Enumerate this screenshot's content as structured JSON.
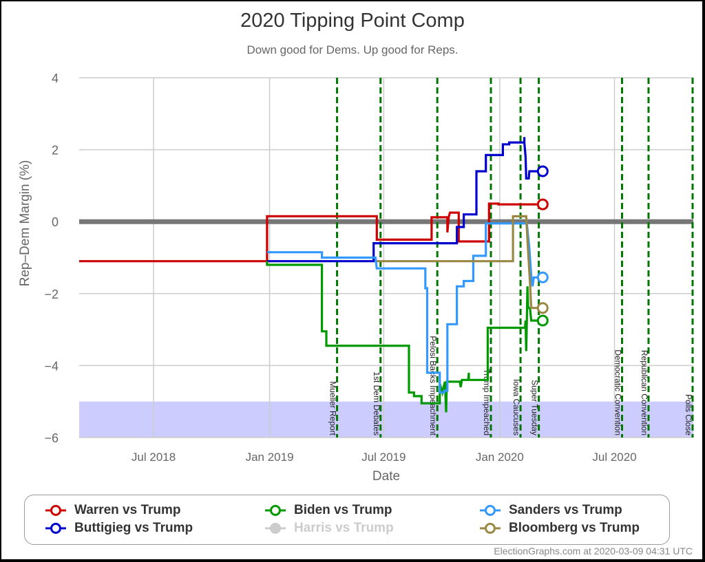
{
  "header": {
    "title": "2020 Tipping Point Comp",
    "subtitle": "Down good for Dems. Up good for Reps."
  },
  "credit": "ElectionGraphs.com at 2020-03-09 04:31 UTC",
  "colors": {
    "warren": "#cc0000",
    "buttigieg": "#0000cc",
    "biden": "#009900",
    "sanders": "#3399ff",
    "bloomberg": "#998844",
    "harris": "#cccccc",
    "event_line": "#007700",
    "zero_line": "#777777",
    "grid": "#cccccc",
    "band": "#ccccff"
  },
  "legend": [
    {
      "label": "Warren vs Trump",
      "key": "warren",
      "enabled": true
    },
    {
      "label": "Biden vs Trump",
      "key": "biden",
      "enabled": true
    },
    {
      "label": "Sanders vs Trump",
      "key": "sanders",
      "enabled": true
    },
    {
      "label": "Buttigieg vs Trump",
      "key": "buttigieg",
      "enabled": true
    },
    {
      "label": "Harris vs Trump",
      "key": "harris",
      "enabled": false
    },
    {
      "label": "Bloomberg vs Trump",
      "key": "bloomberg",
      "enabled": true
    }
  ],
  "chart_data": {
    "type": "line",
    "title": "2020 Tipping Point Comp",
    "subtitle": "Down good for Dems. Up good for Reps.",
    "xlabel": "Date",
    "ylabel": "Rep-Dem Margin (%)",
    "ylim": [
      -6,
      4
    ],
    "yticks": [
      4,
      2,
      0,
      -2,
      -4,
      -6
    ],
    "ytick_labels": [
      "4",
      "2",
      "0",
      "−2",
      "−4",
      "−6"
    ],
    "xlim": [
      "2018-03-05",
      "2020-11-03"
    ],
    "xticks": [
      {
        "date": "2018-07-01",
        "label": "Jul 2018"
      },
      {
        "date": "2019-01-01",
        "label": "Jan 2019"
      },
      {
        "date": "2019-07-01",
        "label": "Jul 2019"
      },
      {
        "date": "2020-01-01",
        "label": "Jan 2020"
      },
      {
        "date": "2020-07-01",
        "label": "Jul 2020"
      }
    ],
    "grid": true,
    "shaded_band": {
      "from": -6,
      "to": -5
    },
    "events": [
      {
        "date": "2019-04-18",
        "label": "Mueller Report"
      },
      {
        "date": "2019-06-26",
        "label": "1st Dem Debates"
      },
      {
        "date": "2019-09-24",
        "label": "Pelosi Backs Impeachment"
      },
      {
        "date": "2019-12-18",
        "label": "Trump Impeached"
      },
      {
        "date": "2020-02-03",
        "label": "Iowa Caucuses"
      },
      {
        "date": "2020-03-03",
        "label": "Super Tuesday"
      },
      {
        "date": "2020-07-13",
        "label": "Democratic Convention"
      },
      {
        "date": "2020-08-24",
        "label": "Republican Convention"
      },
      {
        "date": "2020-11-03",
        "label": "Polls Close"
      }
    ],
    "series": [
      {
        "name": "Warren vs Trump",
        "key": "warren",
        "points": [
          [
            "2018-03-05",
            -1.1
          ],
          [
            "2018-12-28",
            -1.1
          ],
          [
            "2018-12-28",
            0.15
          ],
          [
            "2019-06-20",
            0.15
          ],
          [
            "2019-06-20",
            -0.5
          ],
          [
            "2019-09-15",
            -0.5
          ],
          [
            "2019-09-15",
            0.12
          ],
          [
            "2019-10-10",
            0.12
          ],
          [
            "2019-10-10",
            -0.3
          ],
          [
            "2019-10-12",
            0.12
          ],
          [
            "2019-10-14",
            0.25
          ],
          [
            "2019-10-28",
            0.25
          ],
          [
            "2019-10-28",
            -0.55
          ],
          [
            "2019-12-15",
            -0.55
          ],
          [
            "2019-12-15",
            0.5
          ],
          [
            "2019-12-30",
            0.5
          ],
          [
            "2019-12-30",
            0.48
          ],
          [
            "2020-03-07",
            0.48
          ]
        ],
        "end": -0.0,
        "end_value": 0.48
      },
      {
        "name": "Buttigieg vs Trump",
        "key": "buttigieg",
        "points": [
          [
            "2018-12-28",
            -1.1
          ],
          [
            "2019-06-15",
            -1.1
          ],
          [
            "2019-06-15",
            -0.6
          ],
          [
            "2019-10-25",
            -0.6
          ],
          [
            "2019-10-25",
            -0.15
          ],
          [
            "2019-11-05",
            -0.15
          ],
          [
            "2019-11-05",
            0.2
          ],
          [
            "2019-11-25",
            0.2
          ],
          [
            "2019-11-25",
            1.4
          ],
          [
            "2019-12-10",
            1.4
          ],
          [
            "2019-12-10",
            1.85
          ],
          [
            "2020-01-06",
            1.85
          ],
          [
            "2020-01-06",
            2.15
          ],
          [
            "2020-01-16",
            2.15
          ],
          [
            "2020-01-16",
            2.2
          ],
          [
            "2020-02-09",
            2.2
          ],
          [
            "2020-02-09",
            2.35
          ],
          [
            "2020-02-09",
            2.2
          ],
          [
            "2020-02-11",
            1.8
          ],
          [
            "2020-02-12",
            1.2
          ],
          [
            "2020-02-16",
            1.2
          ],
          [
            "2020-02-17",
            1.4
          ],
          [
            "2020-03-07",
            1.4
          ]
        ],
        "end_value": 1.4
      },
      {
        "name": "Biden vs Trump",
        "key": "biden",
        "points": [
          [
            "2018-12-28",
            -1.1
          ],
          [
            "2018-12-28",
            -1.2
          ],
          [
            "2019-03-25",
            -1.2
          ],
          [
            "2019-03-25",
            -3.05
          ],
          [
            "2019-04-01",
            -3.05
          ],
          [
            "2019-04-01",
            -3.45
          ],
          [
            "2019-08-10",
            -3.45
          ],
          [
            "2019-08-10",
            -4.75
          ],
          [
            "2019-08-18",
            -4.75
          ],
          [
            "2019-08-18",
            -4.85
          ],
          [
            "2019-08-30",
            -4.85
          ],
          [
            "2019-08-30",
            -5.05
          ],
          [
            "2019-09-28",
            -5.05
          ],
          [
            "2019-09-28",
            -4.5
          ],
          [
            "2019-10-02",
            -4.75
          ],
          [
            "2019-10-06",
            -4.45
          ],
          [
            "2019-10-08",
            -5.3
          ],
          [
            "2019-10-09",
            -4.45
          ],
          [
            "2019-10-30",
            -4.45
          ],
          [
            "2019-10-31",
            -4.6
          ],
          [
            "2019-11-02",
            -4.4
          ],
          [
            "2019-11-12",
            -4.4
          ],
          [
            "2019-11-13",
            -4.2
          ],
          [
            "2019-11-13",
            -4.4
          ],
          [
            "2019-12-13",
            -4.4
          ],
          [
            "2019-12-13",
            -2.95
          ],
          [
            "2020-02-10",
            -2.95
          ],
          [
            "2020-02-11",
            -2.75
          ],
          [
            "2020-02-12",
            -3.6
          ],
          [
            "2020-02-13",
            -2.8
          ],
          [
            "2020-02-14",
            -1.8
          ],
          [
            "2020-02-15",
            -2.4
          ],
          [
            "2020-02-18",
            -2.4
          ],
          [
            "2020-02-20",
            -2.75
          ],
          [
            "2020-03-07",
            -2.75
          ]
        ],
        "end_value": -2.75
      },
      {
        "name": "Sanders vs Trump",
        "key": "sanders",
        "points": [
          [
            "2018-12-28",
            -0.85
          ],
          [
            "2019-03-25",
            -0.85
          ],
          [
            "2019-03-25",
            -1.0
          ],
          [
            "2019-06-18",
            -1.0
          ],
          [
            "2019-06-20",
            -1.3
          ],
          [
            "2019-09-05",
            -1.3
          ],
          [
            "2019-09-05",
            -1.85
          ],
          [
            "2019-09-08",
            -1.85
          ],
          [
            "2019-09-08",
            -4.2
          ],
          [
            "2019-09-28",
            -4.2
          ],
          [
            "2019-09-28",
            -4.75
          ],
          [
            "2019-10-05",
            -4.75
          ],
          [
            "2019-10-05",
            -4.7
          ],
          [
            "2019-10-10",
            -4.7
          ],
          [
            "2019-10-10",
            -2.85
          ],
          [
            "2019-10-25",
            -2.85
          ],
          [
            "2019-10-25",
            -1.8
          ],
          [
            "2019-11-05",
            -1.8
          ],
          [
            "2019-11-05",
            -1.65
          ],
          [
            "2019-11-20",
            -1.65
          ],
          [
            "2019-11-20",
            -0.95
          ],
          [
            "2019-12-10",
            -0.95
          ],
          [
            "2019-12-10",
            -0.05
          ],
          [
            "2020-02-13",
            -0.05
          ],
          [
            "2020-02-17",
            -0.75
          ],
          [
            "2020-02-20",
            -1.5
          ],
          [
            "2020-02-22",
            -1.8
          ],
          [
            "2020-02-24",
            -1.55
          ],
          [
            "2020-03-07",
            -1.55
          ]
        ],
        "end_value": -1.55
      },
      {
        "name": "Bloomberg vs Trump",
        "key": "bloomberg",
        "points": [
          [
            "2019-06-20",
            -1.1
          ],
          [
            "2020-01-22",
            -1.1
          ],
          [
            "2020-01-22",
            0.15
          ],
          [
            "2020-02-12",
            0.15
          ],
          [
            "2020-02-14",
            -0.5
          ],
          [
            "2020-02-18",
            -1.7
          ],
          [
            "2020-02-20",
            -2.4
          ],
          [
            "2020-03-07",
            -2.4
          ]
        ],
        "end_value": -2.4
      }
    ],
    "last_point_date": "2020-03-07"
  }
}
